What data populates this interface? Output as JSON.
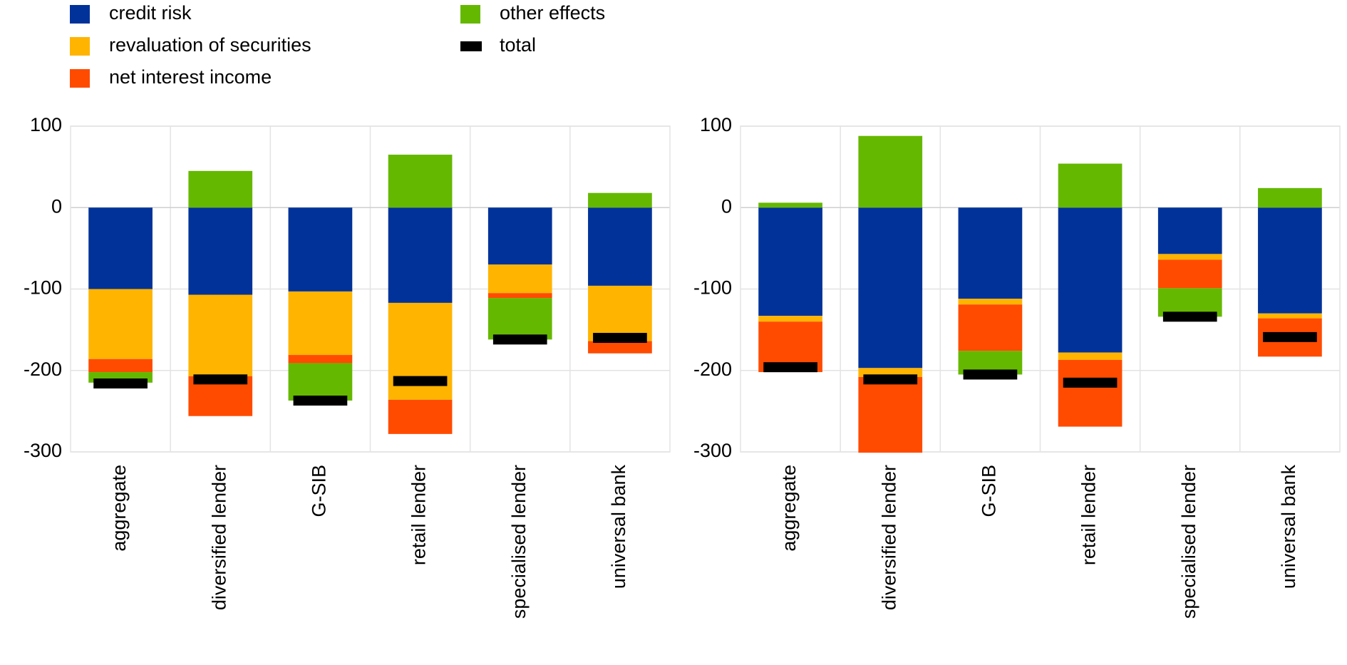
{
  "chart_data": [
    {
      "type": "bar",
      "stacked": true,
      "grid": true,
      "categories": [
        "aggregate",
        "diversified lender",
        "G-SIB",
        "retail lender",
        "specialised lender",
        "universal bank"
      ],
      "ylim": [
        -300,
        100
      ],
      "yticks": [
        -300,
        -200,
        -100,
        0,
        100
      ],
      "series": [
        {
          "name": "credit risk",
          "color": "#003299",
          "values": [
            -100,
            -107,
            -103,
            -117,
            -70,
            -96
          ]
        },
        {
          "name": "revaluation of securities",
          "color": "#ffb400",
          "values": [
            -86,
            -100,
            -78,
            -119,
            -35,
            -68
          ]
        },
        {
          "name": "net interest income",
          "color": "#ff4b00",
          "values": [
            -16,
            -49,
            -10,
            -42,
            -6,
            -15
          ]
        },
        {
          "name": "other effects",
          "color": "#65b800",
          "values": [
            -13,
            45,
            -46,
            65,
            -51,
            18
          ]
        },
        {
          "name": "total",
          "color": "#000000",
          "style": "marker",
          "values": [
            -216,
            -211,
            -237,
            -213,
            -162,
            -160
          ]
        }
      ]
    },
    {
      "type": "bar",
      "stacked": true,
      "grid": true,
      "categories": [
        "aggregate",
        "diversified lender",
        "G-SIB",
        "retail lender",
        "specialised lender",
        "universal bank"
      ],
      "ylim": [
        -300,
        100
      ],
      "yticks": [
        -300,
        -200,
        -100,
        0,
        100
      ],
      "series": [
        {
          "name": "credit risk",
          "color": "#003299",
          "values": [
            -133,
            -197,
            -112,
            -178,
            -57,
            -130
          ]
        },
        {
          "name": "revaluation of securities",
          "color": "#ffb400",
          "values": [
            -7,
            -11,
            -7,
            -9,
            -7,
            -6
          ]
        },
        {
          "name": "net interest income",
          "color": "#ff4b00",
          "values": [
            -62,
            -93,
            -57,
            -82,
            -35,
            -47
          ]
        },
        {
          "name": "other effects",
          "color": "#65b800",
          "values": [
            6,
            88,
            -29,
            54,
            -35,
            24
          ]
        },
        {
          "name": "total",
          "color": "#000000",
          "style": "marker",
          "values": [
            -196,
            -211,
            -205,
            -215,
            -134,
            -159
          ]
        }
      ]
    }
  ]
}
